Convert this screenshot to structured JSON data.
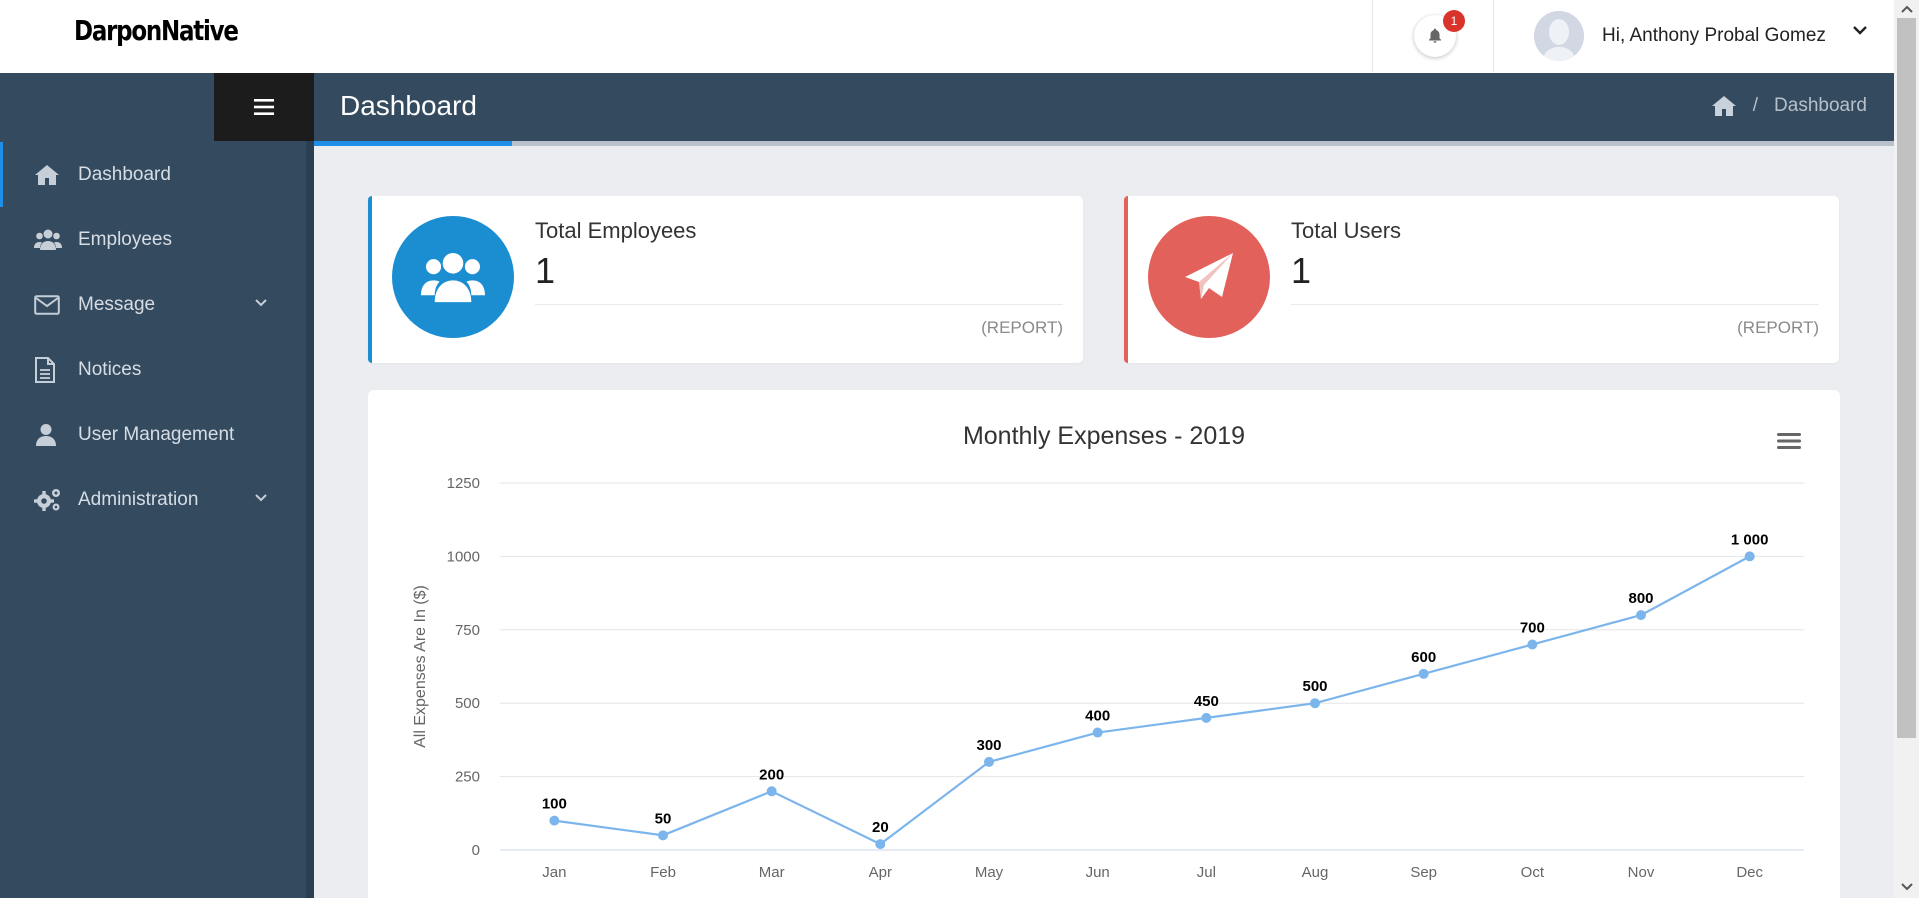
{
  "app": {
    "logo": "DarponNative"
  },
  "topbar": {
    "notification_count": "1",
    "user_greeting": "Hi, Anthony Probal Gomez"
  },
  "header": {
    "title": "Dashboard",
    "breadcrumb": {
      "current": "Dashboard",
      "separator": "/"
    }
  },
  "sidebar": {
    "items": [
      {
        "label": "Dashboard",
        "icon": "home-icon",
        "active": true
      },
      {
        "label": "Employees",
        "icon": "users-icon",
        "active": false
      },
      {
        "label": "Message",
        "icon": "envelope-icon",
        "active": false,
        "has_submenu": true
      },
      {
        "label": "Notices",
        "icon": "document-icon",
        "active": false
      },
      {
        "label": "User Management",
        "icon": "user-icon",
        "active": false
      },
      {
        "label": "Administration",
        "icon": "gears-icon",
        "active": false,
        "has_submenu": true
      }
    ]
  },
  "cards": [
    {
      "title": "Total Employees",
      "value": "1",
      "link": "(REPORT)",
      "color": "#1b8ed1",
      "icon": "users-icon"
    },
    {
      "title": "Total Users",
      "value": "1",
      "link": "(REPORT)",
      "color": "#e2615a",
      "icon": "paper-plane-icon"
    }
  ],
  "chart_data": {
    "type": "line",
    "title": "Monthly Expenses - 2019",
    "ylabel": "All Expenses Are In ($)",
    "xlabel": "",
    "categories": [
      "Jan",
      "Feb",
      "Mar",
      "Apr",
      "May",
      "Jun",
      "Jul",
      "Aug",
      "Sep",
      "Oct",
      "Nov",
      "Dec"
    ],
    "values": [
      100,
      50,
      200,
      20,
      300,
      400,
      450,
      500,
      600,
      700,
      800,
      1000
    ],
    "data_labels": [
      "100",
      "50",
      "200",
      "20",
      "300",
      "400",
      "450",
      "500",
      "600",
      "700",
      "800",
      "1 000"
    ],
    "yticks": [
      0,
      250,
      500,
      750,
      1000,
      1250
    ],
    "ylim": [
      0,
      1250
    ],
    "grid": true,
    "legend": "none",
    "line_color": "#7cb5ec"
  },
  "colors": {
    "sidebar_bg": "#344a5f",
    "accent": "#1f8ee6",
    "page_bg": "#ecedf1"
  }
}
